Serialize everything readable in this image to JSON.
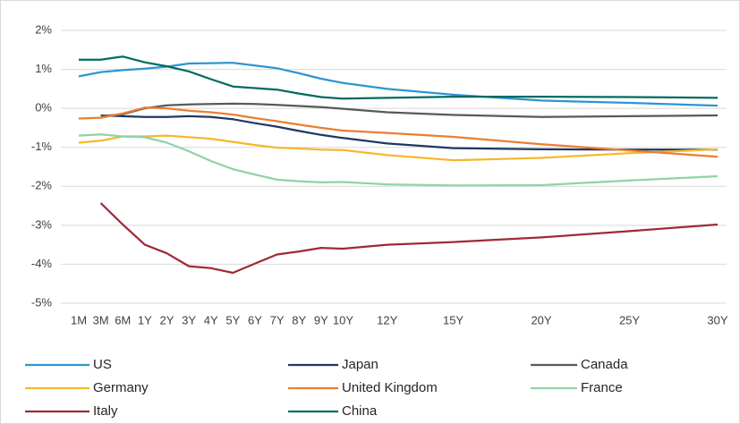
{
  "chart_data": {
    "type": "line",
    "categories": [
      "1M",
      "3M",
      "6M",
      "1Y",
      "2Y",
      "3Y",
      "4Y",
      "5Y",
      "6Y",
      "7Y",
      "8Y",
      "9Y",
      "10Y",
      "12Y",
      "15Y",
      "20Y",
      "25Y",
      "30Y"
    ],
    "ylim": [
      -5,
      2
    ],
    "yticks": [
      {
        "value": -5,
        "label": "-5%"
      },
      {
        "value": -4,
        "label": "-4%"
      },
      {
        "value": -3,
        "label": "-3%"
      },
      {
        "value": -2,
        "label": "-2%"
      },
      {
        "value": -1,
        "label": "-1%"
      },
      {
        "value": 0,
        "label": "0%"
      },
      {
        "value": 1,
        "label": "1%"
      },
      {
        "value": 2,
        "label": "2%"
      }
    ],
    "grid": true,
    "legend": "bottom",
    "series": [
      {
        "name": "US",
        "color": "#2e95d3",
        "values": [
          0.82,
          0.93,
          0.98,
          1.02,
          1.07,
          1.15,
          1.16,
          1.17,
          1.1,
          1.03,
          0.9,
          0.76,
          0.65,
          0.5,
          0.35,
          0.2,
          0.14,
          0.07
        ]
      },
      {
        "name": "Japan",
        "color": "#1f3864",
        "values": [
          null,
          -0.18,
          -0.2,
          -0.22,
          -0.22,
          -0.2,
          -0.22,
          -0.28,
          -0.38,
          -0.47,
          -0.58,
          -0.68,
          -0.76,
          -0.9,
          -1.02,
          -1.05,
          -1.06,
          -1.06
        ]
      },
      {
        "name": "Canada",
        "color": "#595959",
        "values": [
          null,
          -0.2,
          -0.15,
          0,
          0.08,
          0.1,
          0.11,
          0.12,
          0.11,
          0.09,
          0.06,
          0.03,
          -0.01,
          -0.1,
          -0.17,
          -0.22,
          -0.2,
          -0.18
        ]
      },
      {
        "name": "Germany",
        "color": "#f5b82e",
        "values": [
          -0.88,
          -0.83,
          -0.72,
          -0.72,
          -0.7,
          -0.74,
          -0.78,
          -0.86,
          -0.94,
          -1.01,
          -1.03,
          -1.06,
          -1.07,
          -1.2,
          -1.33,
          -1.27,
          -1.15,
          -1.05
        ]
      },
      {
        "name": "United Kingdom",
        "color": "#ed7d31",
        "values": [
          -0.26,
          -0.24,
          -0.13,
          0.02,
          0.0,
          -0.06,
          -0.1,
          -0.16,
          -0.25,
          -0.33,
          -0.42,
          -0.5,
          -0.57,
          -0.63,
          -0.73,
          -0.92,
          -1.08,
          -1.24
        ]
      },
      {
        "name": "France",
        "color": "#8fd3a8",
        "values": [
          -0.7,
          -0.67,
          -0.72,
          -0.74,
          -0.88,
          -1.1,
          -1.35,
          -1.56,
          -1.7,
          -1.83,
          -1.87,
          -1.9,
          -1.89,
          -1.95,
          -1.98,
          -1.97,
          -1.85,
          -1.74
        ]
      },
      {
        "name": "Italy",
        "color": "#9e2a35",
        "values": [
          null,
          -2.43,
          -2.98,
          -3.5,
          -3.72,
          -4.05,
          -4.1,
          -4.22,
          -3.98,
          -3.75,
          -3.67,
          -3.58,
          -3.6,
          -3.5,
          -3.43,
          -3.31,
          -3.15,
          -2.98
        ]
      },
      {
        "name": "China",
        "color": "#006b5f",
        "values": [
          1.25,
          1.25,
          1.33,
          1.18,
          1.08,
          0.95,
          0.75,
          0.56,
          0.52,
          0.48,
          0.38,
          0.29,
          0.25,
          0.27,
          0.3,
          0.3,
          0.29,
          0.27
        ]
      }
    ]
  }
}
